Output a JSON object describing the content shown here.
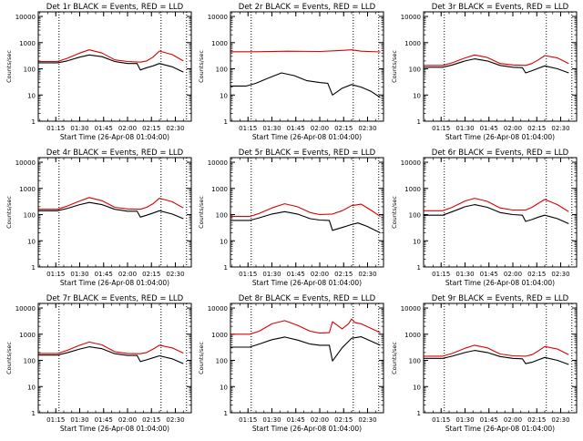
{
  "chart_data": [
    {
      "type": "line",
      "title": "Det 1r BLACK = Events, RED = LLD",
      "xlabel": "Start Time (26-Apr-08 01:04:00)",
      "ylabel": "Counts/sec",
      "x_ticks": [
        "01:15",
        "01:30",
        "01:45",
        "02:00",
        "02:15",
        "02:30"
      ],
      "y_ticks": [
        "1",
        "10",
        "100",
        "1000",
        "10000"
      ],
      "yscale": "log",
      "ylim": [
        1,
        15000
      ],
      "xlim": [
        "01:04",
        "02:40"
      ],
      "vlines": [
        "01:17",
        "02:21",
        "02:37"
      ],
      "series": [
        {
          "color": "#000000",
          "x": [
            "01:04",
            "01:16",
            "01:22",
            "01:30",
            "01:36",
            "01:44",
            "01:52",
            "02:00",
            "02:06",
            "02:08",
            "02:12",
            "02:16",
            "02:20",
            "02:28",
            "02:35"
          ],
          "values": [
            170,
            170,
            200,
            280,
            340,
            290,
            190,
            160,
            160,
            90,
            110,
            130,
            160,
            120,
            75
          ]
        },
        {
          "color": "#dd0000",
          "x": [
            "01:04",
            "01:16",
            "01:22",
            "01:30",
            "01:36",
            "01:44",
            "01:52",
            "02:00",
            "02:08",
            "02:12",
            "02:16",
            "02:20",
            "02:28",
            "02:35"
          ],
          "values": [
            190,
            190,
            250,
            400,
            530,
            400,
            220,
            190,
            180,
            200,
            280,
            480,
            350,
            200
          ]
        }
      ]
    },
    {
      "type": "line",
      "title": "Det 2r BLACK = Events, RED = LLD",
      "xlabel": "Start Time (26-Apr-08 01:04:00)",
      "ylabel": "Counts/sec",
      "x_ticks": [
        "01:15",
        "01:30",
        "01:45",
        "02:00",
        "02:15",
        "02:30"
      ],
      "y_ticks": [
        "1",
        "10",
        "100",
        "1000",
        "10000"
      ],
      "yscale": "log",
      "ylim": [
        1,
        15000
      ],
      "xlim": [
        "01:04",
        "02:40"
      ],
      "vlines": [
        "01:17",
        "02:21",
        "02:37"
      ],
      "series": [
        {
          "color": "#000000",
          "x": [
            "01:04",
            "01:14",
            "01:20",
            "01:28",
            "01:36",
            "01:44",
            "01:52",
            "02:00",
            "02:05",
            "02:08",
            "02:14",
            "02:20",
            "02:26",
            "02:32",
            "02:38"
          ],
          "values": [
            22,
            22,
            28,
            45,
            70,
            55,
            35,
            30,
            28,
            10,
            18,
            25,
            20,
            14,
            8
          ]
        },
        {
          "color": "#dd0000",
          "x": [
            "01:04",
            "01:20",
            "01:40",
            "02:00",
            "02:10",
            "02:20",
            "02:26",
            "02:38"
          ],
          "values": [
            450,
            450,
            470,
            460,
            490,
            530,
            470,
            440
          ]
        }
      ]
    },
    {
      "type": "line",
      "title": "Det 3r BLACK = Events, RED = LLD",
      "xlabel": "Start Time (26-Apr-08 01:04:00)",
      "ylabel": "Counts/sec",
      "x_ticks": [
        "01:15",
        "01:30",
        "01:45",
        "02:00",
        "02:15",
        "02:30"
      ],
      "y_ticks": [
        "1",
        "10",
        "100",
        "1000",
        "10000"
      ],
      "yscale": "log",
      "ylim": [
        1,
        15000
      ],
      "xlim": [
        "01:04",
        "02:40"
      ],
      "vlines": [
        "01:17",
        "02:21",
        "02:37"
      ],
      "series": [
        {
          "color": "#000000",
          "x": [
            "01:04",
            "01:16",
            "01:22",
            "01:30",
            "01:36",
            "01:44",
            "01:52",
            "02:00",
            "02:06",
            "02:08",
            "02:12",
            "02:16",
            "02:20",
            "02:28",
            "02:35"
          ],
          "values": [
            115,
            115,
            140,
            200,
            240,
            200,
            135,
            115,
            110,
            70,
            85,
            105,
            130,
            100,
            70
          ]
        },
        {
          "color": "#dd0000",
          "x": [
            "01:04",
            "01:16",
            "01:22",
            "01:30",
            "01:36",
            "01:44",
            "01:52",
            "02:00",
            "02:08",
            "02:12",
            "02:16",
            "02:20",
            "02:28",
            "02:35"
          ],
          "values": [
            135,
            135,
            170,
            260,
            340,
            270,
            160,
            140,
            135,
            160,
            220,
            320,
            260,
            160
          ]
        }
      ]
    },
    {
      "type": "line",
      "title": "Det 4r BLACK = Events, RED = LLD",
      "xlabel": "Start Time (26-Apr-08 01:04:00)",
      "ylabel": "Counts/sec",
      "x_ticks": [
        "01:15",
        "01:30",
        "01:45",
        "02:00",
        "02:15",
        "02:30"
      ],
      "y_ticks": [
        "1",
        "10",
        "100",
        "1000",
        "10000"
      ],
      "yscale": "log",
      "ylim": [
        1,
        15000
      ],
      "xlim": [
        "01:04",
        "02:40"
      ],
      "vlines": [
        "01:17",
        "02:21",
        "02:37"
      ],
      "series": [
        {
          "color": "#000000",
          "x": [
            "01:04",
            "01:16",
            "01:22",
            "01:30",
            "01:36",
            "01:44",
            "01:52",
            "02:00",
            "02:06",
            "02:08",
            "02:12",
            "02:16",
            "02:20",
            "02:28",
            "02:35"
          ],
          "values": [
            140,
            140,
            170,
            240,
            290,
            240,
            160,
            135,
            135,
            80,
            95,
            115,
            140,
            105,
            70
          ]
        },
        {
          "color": "#dd0000",
          "x": [
            "01:04",
            "01:16",
            "01:22",
            "01:30",
            "01:36",
            "01:44",
            "01:52",
            "02:00",
            "02:08",
            "02:12",
            "02:16",
            "02:20",
            "02:28",
            "02:35"
          ],
          "values": [
            160,
            160,
            210,
            330,
            450,
            340,
            190,
            165,
            160,
            190,
            260,
            420,
            310,
            180
          ]
        }
      ]
    },
    {
      "type": "line",
      "title": "Det 5r BLACK = Events, RED = LLD",
      "xlabel": "Start Time (26-Apr-08 01:04:00)",
      "ylabel": "Counts/sec",
      "x_ticks": [
        "01:15",
        "01:30",
        "01:45",
        "02:00",
        "02:15",
        "02:30"
      ],
      "y_ticks": [
        "1",
        "10",
        "100",
        "1000",
        "10000"
      ],
      "yscale": "log",
      "ylim": [
        1,
        15000
      ],
      "xlim": [
        "01:04",
        "02:40"
      ],
      "vlines": [
        "01:17",
        "02:21",
        "02:37"
      ],
      "series": [
        {
          "color": "#000000",
          "x": [
            "01:04",
            "01:16",
            "01:22",
            "01:30",
            "01:38",
            "01:46",
            "01:54",
            "02:00",
            "02:06",
            "02:08",
            "02:14",
            "02:20",
            "02:24",
            "02:30",
            "02:38"
          ],
          "values": [
            60,
            60,
            75,
            105,
            130,
            105,
            70,
            62,
            60,
            25,
            32,
            42,
            48,
            35,
            20
          ]
        },
        {
          "color": "#dd0000",
          "x": [
            "01:04",
            "01:16",
            "01:22",
            "01:30",
            "01:38",
            "01:46",
            "01:54",
            "02:00",
            "02:08",
            "02:14",
            "02:20",
            "02:26",
            "02:32",
            "02:38"
          ],
          "values": [
            85,
            85,
            110,
            180,
            260,
            200,
            120,
            100,
            105,
            140,
            220,
            250,
            150,
            85
          ]
        }
      ]
    },
    {
      "type": "line",
      "title": "Det 6r BLACK = Events, RED = LLD",
      "xlabel": "Start Time (26-Apr-08 01:04:00)",
      "ylabel": "Counts/sec",
      "x_ticks": [
        "01:15",
        "01:30",
        "01:45",
        "02:00",
        "02:15",
        "02:30"
      ],
      "y_ticks": [
        "1",
        "10",
        "100",
        "1000",
        "10000"
      ],
      "yscale": "log",
      "ylim": [
        1,
        15000
      ],
      "xlim": [
        "01:04",
        "02:40"
      ],
      "vlines": [
        "01:17",
        "02:21",
        "02:37"
      ],
      "series": [
        {
          "color": "#000000",
          "x": [
            "01:04",
            "01:16",
            "01:22",
            "01:30",
            "01:36",
            "01:44",
            "01:52",
            "02:00",
            "02:06",
            "02:08",
            "02:12",
            "02:16",
            "02:20",
            "02:28",
            "02:35"
          ],
          "values": [
            95,
            95,
            130,
            200,
            240,
            190,
            120,
            100,
            95,
            55,
            65,
            80,
            95,
            70,
            45
          ]
        },
        {
          "color": "#dd0000",
          "x": [
            "01:04",
            "01:16",
            "01:22",
            "01:30",
            "01:36",
            "01:44",
            "01:52",
            "02:00",
            "02:08",
            "02:12",
            "02:16",
            "02:20",
            "02:28",
            "02:35"
          ],
          "values": [
            140,
            140,
            190,
            330,
            420,
            320,
            180,
            150,
            150,
            190,
            270,
            380,
            240,
            130
          ]
        }
      ]
    },
    {
      "type": "line",
      "title": "Det 7r BLACK = Events, RED = LLD",
      "xlabel": "Start Time (26-Apr-08 01:04:00)",
      "ylabel": "Counts/sec",
      "x_ticks": [
        "01:15",
        "01:30",
        "01:45",
        "02:00",
        "02:15",
        "02:30"
      ],
      "y_ticks": [
        "1",
        "10",
        "100",
        "1000",
        "10000"
      ],
      "yscale": "log",
      "ylim": [
        1,
        15000
      ],
      "xlim": [
        "01:04",
        "02:40"
      ],
      "vlines": [
        "01:17",
        "02:21",
        "02:37"
      ],
      "series": [
        {
          "color": "#000000",
          "x": [
            "01:04",
            "01:16",
            "01:22",
            "01:30",
            "01:36",
            "01:44",
            "01:52",
            "02:00",
            "02:06",
            "02:08",
            "02:12",
            "02:16",
            "02:20",
            "02:28",
            "02:35"
          ],
          "values": [
            160,
            160,
            195,
            270,
            330,
            280,
            180,
            155,
            155,
            90,
            105,
            125,
            150,
            115,
            75
          ]
        },
        {
          "color": "#dd0000",
          "x": [
            "01:04",
            "01:16",
            "01:22",
            "01:30",
            "01:36",
            "01:44",
            "01:52",
            "02:00",
            "02:08",
            "02:12",
            "02:16",
            "02:20",
            "02:28",
            "02:35"
          ],
          "values": [
            185,
            185,
            240,
            380,
            500,
            390,
            215,
            185,
            180,
            200,
            270,
            380,
            300,
            190
          ]
        }
      ]
    },
    {
      "type": "line",
      "title": "Det 8r BLACK = Events, RED = LLD",
      "xlabel": "Start Time (26-Apr-08 01:04:00)",
      "ylabel": "Counts/sec",
      "x_ticks": [
        "01:15",
        "01:30",
        "01:45",
        "02:00",
        "02:15",
        "02:30"
      ],
      "y_ticks": [
        "1",
        "10",
        "100",
        "1000",
        "10000"
      ],
      "yscale": "log",
      "ylim": [
        1,
        15000
      ],
      "xlim": [
        "01:04",
        "02:40"
      ],
      "vlines": [
        "01:17",
        "02:21",
        "02:37"
      ],
      "series": [
        {
          "color": "#000000",
          "x": [
            "01:04",
            "01:16",
            "01:22",
            "01:30",
            "01:38",
            "01:46",
            "01:54",
            "02:00",
            "02:06",
            "02:08",
            "02:14",
            "02:20",
            "02:26",
            "02:32",
            "02:38"
          ],
          "values": [
            320,
            320,
            420,
            620,
            780,
            600,
            420,
            380,
            380,
            95,
            300,
            700,
            800,
            550,
            380
          ]
        },
        {
          "color": "#dd0000",
          "x": [
            "01:04",
            "01:16",
            "01:22",
            "01:30",
            "01:38",
            "01:46",
            "01:54",
            "02:00",
            "02:06",
            "02:08",
            "02:14",
            "02:18",
            "02:20",
            "02:22",
            "02:26",
            "02:32",
            "02:38"
          ],
          "values": [
            1000,
            1000,
            1300,
            2500,
            3300,
            2200,
            1300,
            1100,
            1150,
            3000,
            1600,
            2500,
            3800,
            2800,
            2500,
            1700,
            1150
          ]
        }
      ]
    },
    {
      "type": "line",
      "title": "Det 9r BLACK = Events, RED = LLD",
      "xlabel": "Start Time (26-Apr-08 01:04:00)",
      "ylabel": "Counts/sec",
      "x_ticks": [
        "01:15",
        "01:30",
        "01:45",
        "02:00",
        "02:15",
        "02:30"
      ],
      "y_ticks": [
        "1",
        "10",
        "100",
        "1000",
        "10000"
      ],
      "yscale": "log",
      "ylim": [
        1,
        15000
      ],
      "xlim": [
        "01:04",
        "02:40"
      ],
      "vlines": [
        "01:17",
        "02:21",
        "02:37"
      ],
      "series": [
        {
          "color": "#000000",
          "x": [
            "01:04",
            "01:16",
            "01:22",
            "01:30",
            "01:36",
            "01:44",
            "01:52",
            "02:00",
            "02:06",
            "02:08",
            "02:12",
            "02:16",
            "02:20",
            "02:28",
            "02:35"
          ],
          "values": [
            120,
            120,
            145,
            200,
            240,
            200,
            140,
            120,
            115,
            75,
            85,
            105,
            130,
            100,
            70
          ]
        },
        {
          "color": "#dd0000",
          "x": [
            "01:04",
            "01:16",
            "01:22",
            "01:30",
            "01:36",
            "01:44",
            "01:52",
            "02:00",
            "02:08",
            "02:12",
            "02:16",
            "02:20",
            "02:28",
            "02:35"
          ],
          "values": [
            145,
            145,
            185,
            290,
            380,
            300,
            175,
            150,
            145,
            165,
            230,
            340,
            270,
            165
          ]
        }
      ]
    }
  ]
}
